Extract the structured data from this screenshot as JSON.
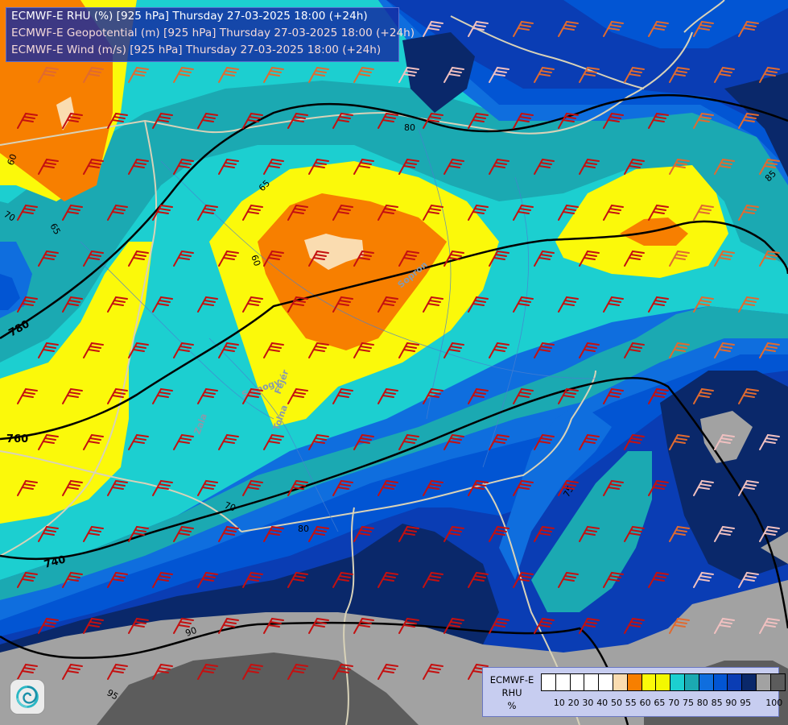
{
  "title_lines": [
    "ECMWF-E RHU (%) [925 hPa] Thursday 27-03-2025 18:00 (+24h)",
    "ECMWF-E Geopotential (m) [925 hPa] Thursday 27-03-2025 18:00 (+24h)",
    "ECMWF-E Wind (m/s) [925 hPa] Thursday 27-03-2025 18:00 (+24h)"
  ],
  "legend": {
    "title_lines": [
      "ECMWF-E",
      "RHU",
      "%"
    ],
    "swatch_colors": [
      "#ffffff",
      "#ffffff",
      "#ffffff",
      "#ffffff",
      "#ffffff",
      "#fadcb0",
      "#f77f00",
      "#fbf90a",
      "#f3f800",
      "#1ccfd0",
      "#1ba9b2",
      "#0f6ede",
      "#0255d3",
      "#0a3db4",
      "#0a286a",
      "#a2a2a2",
      "#5c5c5c"
    ],
    "ticks": [
      "10",
      "20",
      "30",
      "40",
      "50",
      "55",
      "60",
      "65",
      "70",
      "75",
      "80",
      "85",
      "90",
      "95",
      "100"
    ]
  },
  "contour_labels": {
    "geopotential": [
      "780",
      "760",
      "740"
    ],
    "rhu": [
      "60",
      "65",
      "70",
      "80",
      "60",
      "65",
      "70",
      "80",
      "75",
      "90",
      "95",
      "85"
    ]
  },
  "place_labels": [
    "Sopron",
    "Fejér",
    "Tolna",
    "Zala",
    "Somogy"
  ],
  "colors": {
    "rhu_60": "#f77f00",
    "rhu_65": "#fbf90a",
    "rhu_70": "#1ccfd0",
    "rhu_75": "#1ba9b2",
    "rhu_80": "#0f6ede",
    "rhu_85": "#0255d3",
    "rhu_90": "#0a3db4",
    "rhu_95": "#0a286a",
    "rhu_100": "#a2a2a2",
    "geopotential_line": "#000000",
    "border_line": "#d8d2b8",
    "wind_barb_strong": "#c41010",
    "wind_barb_medium": "#e06a30",
    "wind_barb_light": "#f0c0c0"
  },
  "logo_icon": "ecmwf-swirl-logo"
}
